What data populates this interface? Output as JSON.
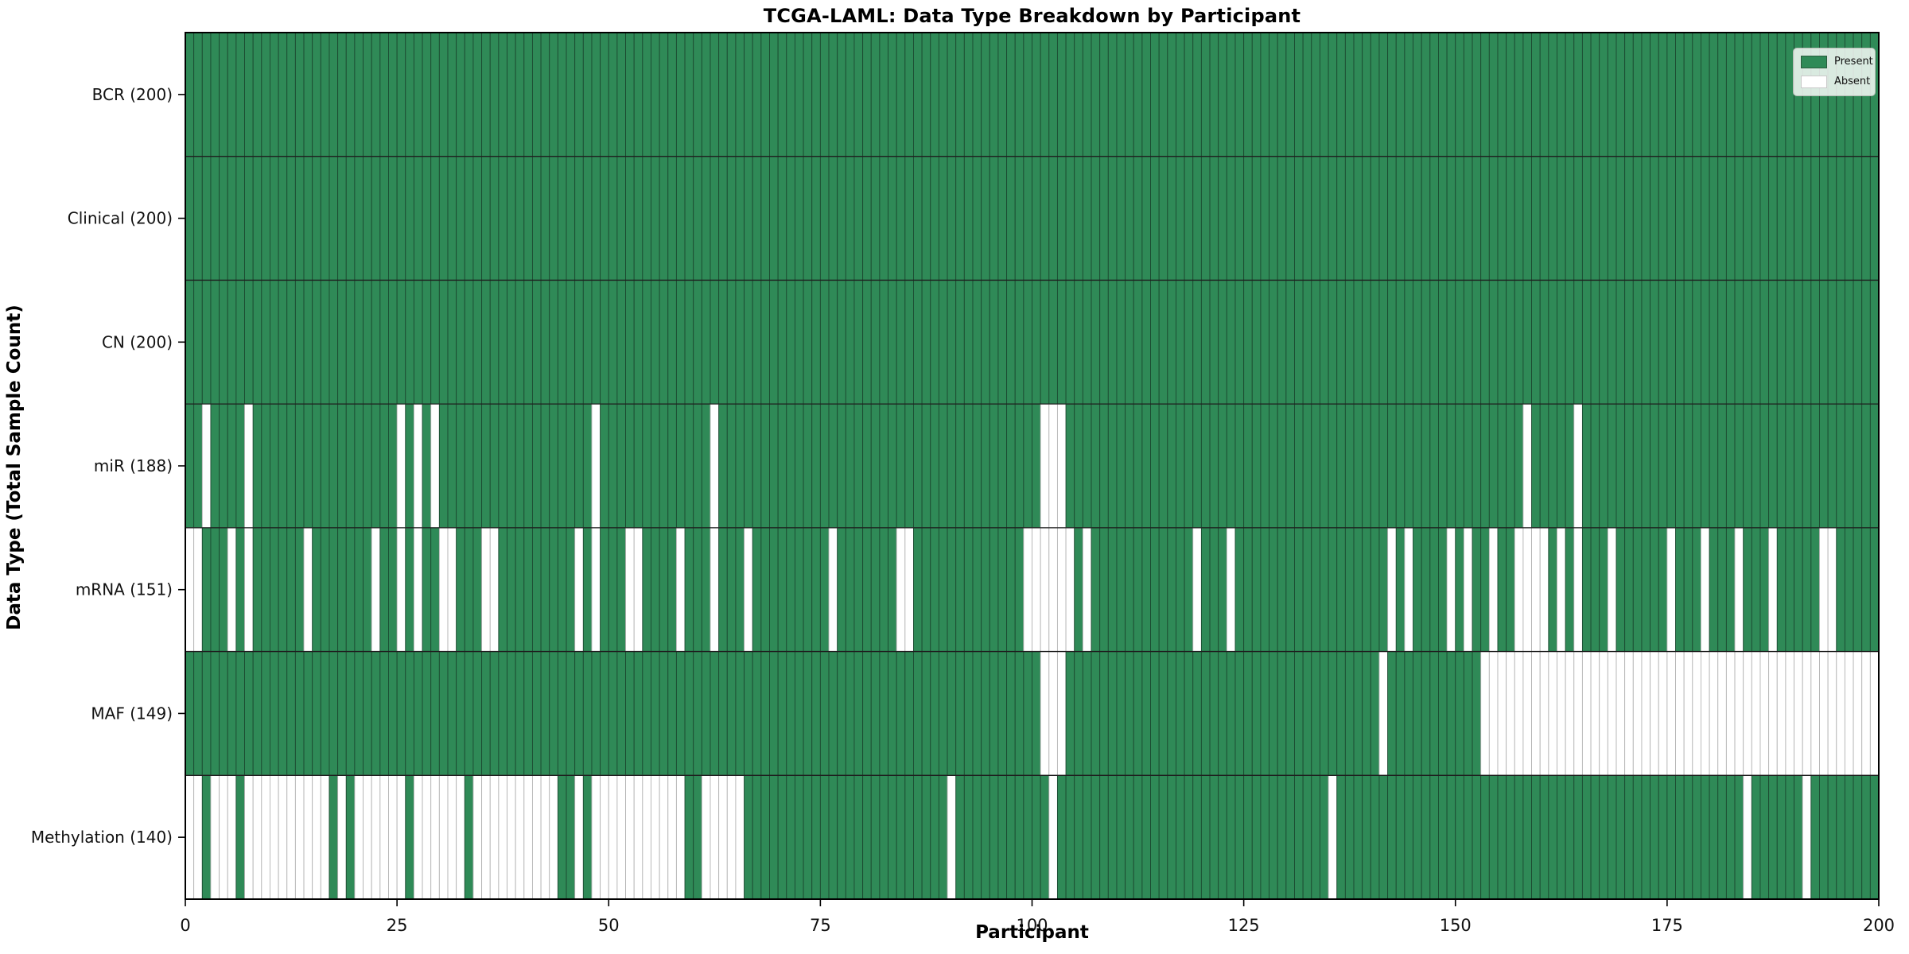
{
  "chart_data": {
    "type": "heatmap",
    "title": "TCGA-LAML: Data Type Breakdown by Participant",
    "xlabel": "Participant",
    "ylabel": "Data Type (Total Sample Count)",
    "x_ticks": [
      "0",
      "25",
      "50",
      "75",
      "100",
      "125",
      "150",
      "175",
      "200"
    ],
    "x_tick_values": [
      0,
      25,
      50,
      75,
      100,
      125,
      150,
      175,
      200
    ],
    "xlim": [
      0,
      200
    ],
    "n_participants": 200,
    "grid": "cell-borders",
    "legend": {
      "position": "upper right",
      "entries": [
        {
          "label": "Present",
          "color": "#2f8a57"
        },
        {
          "label": "Absent",
          "color": "#ffffff"
        }
      ]
    },
    "colors": {
      "present": "#2f8a57",
      "absent": "#ffffff",
      "present_edge": "#1c4a31",
      "absent_edge": "#b4b4b4",
      "row_divider": "#1f1f1f",
      "spine": "#000000",
      "tick": "#000000",
      "text": "#111111"
    },
    "rows": [
      {
        "label": "BCR (200)",
        "name": "BCR",
        "present_count": 200,
        "absent": []
      },
      {
        "label": "Clinical (200)",
        "name": "Clinical",
        "present_count": 200,
        "absent": []
      },
      {
        "label": "CN (200)",
        "name": "CN",
        "present_count": 200,
        "absent": []
      },
      {
        "label": "miR (188)",
        "name": "miR",
        "present_count": 188,
        "absent": [
          2,
          7,
          25,
          27,
          29,
          48,
          62,
          101,
          102,
          103,
          158,
          164
        ]
      },
      {
        "label": "mRNA (151)",
        "name": "mRNA",
        "present_count": 151,
        "absent": [
          0,
          1,
          5,
          7,
          14,
          22,
          25,
          27,
          30,
          31,
          35,
          36,
          46,
          48,
          52,
          53,
          58,
          62,
          66,
          76,
          84,
          85,
          99,
          100,
          101,
          102,
          103,
          104,
          106,
          119,
          123,
          142,
          144,
          149,
          151,
          154,
          157,
          158,
          159,
          160,
          162,
          164,
          168,
          175,
          179,
          183,
          187,
          193,
          194
        ]
      },
      {
        "label": "MAF (149)",
        "name": "MAF",
        "present_count": 149,
        "absent": [
          101,
          102,
          103,
          141,
          153,
          154,
          155,
          156,
          157,
          158,
          159,
          160,
          161,
          162,
          163,
          164,
          165,
          166,
          167,
          168,
          169,
          170,
          171,
          172,
          173,
          174,
          175,
          176,
          177,
          178,
          179,
          180,
          181,
          182,
          183,
          184,
          185,
          186,
          187,
          188,
          189,
          190,
          191,
          192,
          193,
          194,
          195,
          196,
          197,
          198,
          199
        ]
      },
      {
        "label": "Methylation (140)",
        "name": "Methylation",
        "present_count": 140,
        "absent": [
          0,
          1,
          3,
          4,
          5,
          7,
          8,
          9,
          10,
          11,
          12,
          13,
          14,
          15,
          16,
          18,
          20,
          21,
          22,
          23,
          24,
          25,
          27,
          28,
          29,
          30,
          31,
          32,
          34,
          35,
          36,
          37,
          38,
          39,
          40,
          41,
          42,
          43,
          46,
          48,
          49,
          50,
          51,
          52,
          53,
          54,
          55,
          56,
          57,
          58,
          61,
          62,
          63,
          64,
          65,
          90,
          102,
          135,
          184,
          191
        ]
      }
    ]
  }
}
